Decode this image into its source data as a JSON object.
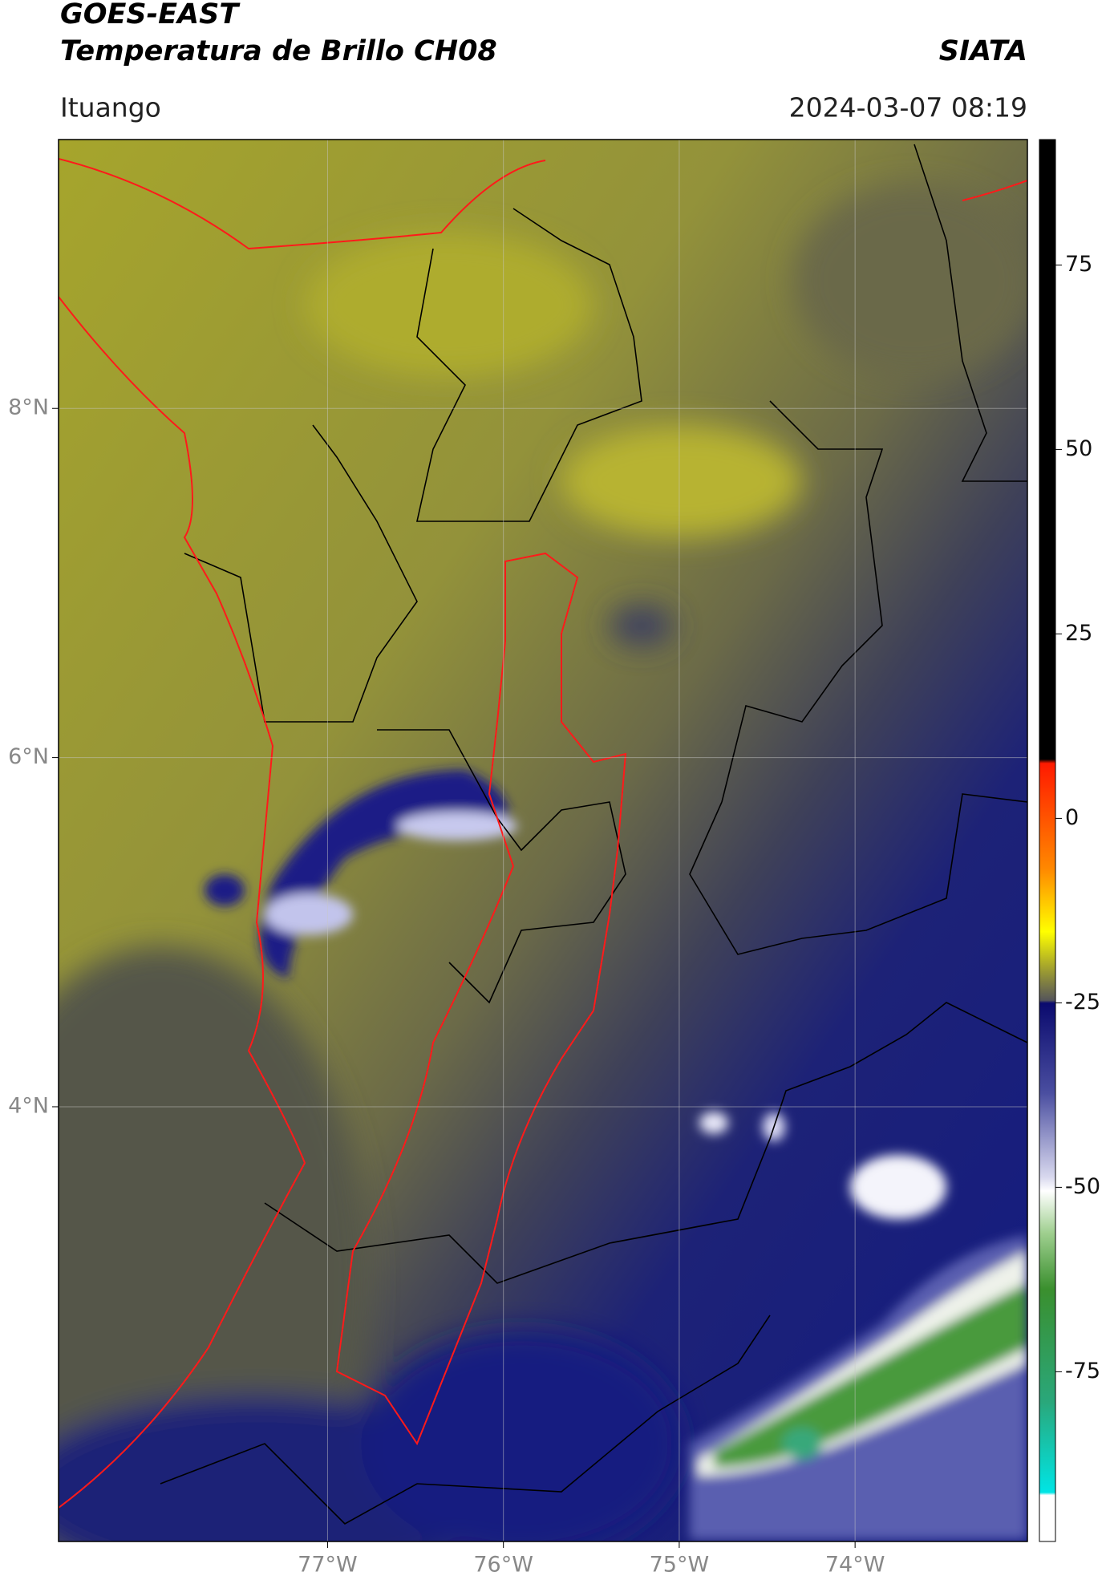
{
  "header": {
    "title": "GOES-EAST",
    "subtitle": "Temperatura de Brillo CH08",
    "source": "SIATA",
    "location": "Ituango",
    "datetime": "2024-03-07 08:19"
  },
  "map": {
    "xlim": [
      -78.53,
      -73.02
    ],
    "ylim": [
      1.51,
      9.54
    ],
    "xticks": [
      {
        "value": -77,
        "label": "77°W"
      },
      {
        "value": -76,
        "label": "76°W"
      },
      {
        "value": -75,
        "label": "75°W"
      },
      {
        "value": -74,
        "label": "74°W"
      }
    ],
    "yticks": [
      {
        "value": 4,
        "label": "4°N"
      },
      {
        "value": 6,
        "label": "6°N"
      },
      {
        "value": 8,
        "label": "8°N"
      }
    ],
    "grid": true
  },
  "colorbar": {
    "lim": [
      -98,
      92
    ],
    "ticks": [
      75,
      50,
      25,
      0,
      -25,
      -50,
      -75
    ]
  }
}
